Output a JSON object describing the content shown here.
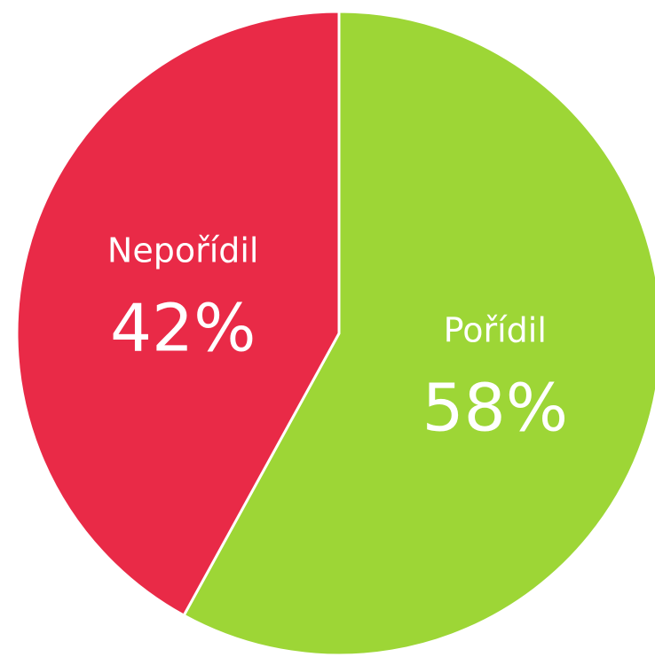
{
  "chart_data": {
    "type": "pie",
    "categories": [
      "Pořídil",
      "Nepořídil"
    ],
    "values": [
      58,
      42
    ],
    "value_labels": [
      "58%",
      "42%"
    ],
    "colors": [
      "#9dd636",
      "#e92a47"
    ]
  }
}
